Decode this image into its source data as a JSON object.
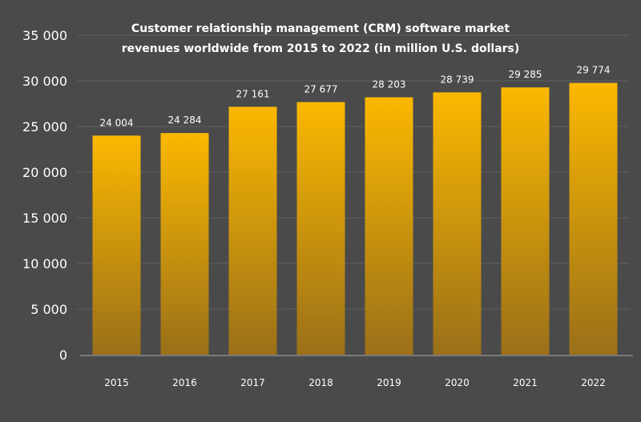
{
  "chart_data": {
    "type": "bar",
    "title_lines": [
      "Customer relationship management (CRM) software market",
      "revenues worldwide from 2015 to 2022 (in million U.S. dollars)"
    ],
    "xlabel": "",
    "ylabel": "",
    "categories": [
      "2015",
      "2016",
      "2017",
      "2018",
      "2019",
      "2020",
      "2021",
      "2022"
    ],
    "values": [
      24004,
      24284,
      27161,
      27677,
      28203,
      28739,
      29285,
      29774
    ],
    "data_labels": [
      "24 004",
      "24 284",
      "27 161",
      "27 677",
      "28 203",
      "28 739",
      "29 285",
      "29 774"
    ],
    "ylim": [
      0,
      35000
    ],
    "yticks": [
      0,
      5000,
      10000,
      15000,
      20000,
      25000,
      30000,
      35000
    ],
    "ytick_labels": [
      "0",
      "5 000",
      "10 000",
      "15 000",
      "20 000",
      "25 000",
      "30 000",
      "35 000"
    ],
    "grid": true,
    "legend": "none",
    "colors": {
      "background": "#4a4a4a",
      "bar_top": "#fbb800",
      "bar_bottom": "#9a7019",
      "gridline": "#555555",
      "axis": "#7a7a7a",
      "text": "#ffffff"
    }
  }
}
